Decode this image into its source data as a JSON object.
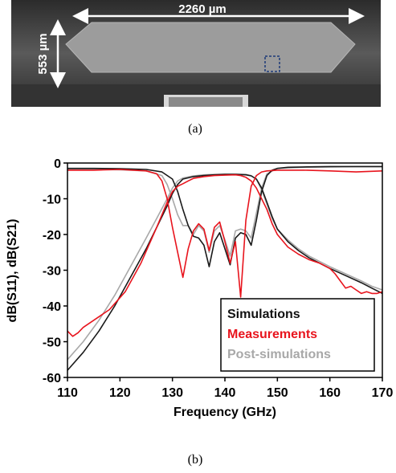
{
  "figure": {
    "caption_a": "(a)",
    "caption_b": "(b)",
    "micrograph": {
      "width_label": "2260 µm",
      "height_label": "553 µm"
    }
  },
  "chart_data": {
    "type": "line",
    "title": "",
    "xlabel": "Frequency (GHz)",
    "ylabel": "dB(S11), dB(S21)",
    "xlim": [
      110,
      170
    ],
    "ylim": [
      -60,
      0
    ],
    "xticks": [
      110,
      120,
      130,
      140,
      150,
      160,
      170
    ],
    "yticks": [
      0,
      -10,
      -20,
      -30,
      -40,
      -50,
      -60
    ],
    "xtick_labels": [
      "110",
      "120",
      "130",
      "140",
      "150",
      "160",
      "170"
    ],
    "ytick_labels": [
      "0",
      "-10",
      "-20",
      "-30",
      "-40",
      "-50",
      "-60"
    ],
    "grid": false,
    "legend_position": "bottom-right",
    "series": [
      {
        "name": "Simulations",
        "color": "#1a1a1a",
        "curves": [
          {
            "role": "S21",
            "x": [
              110,
              113,
              116,
              119,
              122,
              125,
              127,
              129,
              130,
              131,
              132,
              134,
              136,
              138,
              140,
              142,
              144,
              145,
              146,
              147,
              148,
              149,
              150,
              152,
              154,
              156,
              158,
              160,
              163,
              166,
              168,
              170
            ],
            "y": [
              -58,
              -53,
              -47,
              -40,
              -32,
              -24,
              -18,
              -12,
              -8.5,
              -6,
              -4.5,
              -3.8,
              -3.5,
              -3.3,
              -3.2,
              -3.2,
              -3.3,
              -3.6,
              -4.5,
              -7,
              -11,
              -15,
              -18.5,
              -22,
              -24.5,
              -26.5,
              -28,
              -29.5,
              -31.5,
              -33.5,
              -35,
              -36.5
            ]
          },
          {
            "role": "S11",
            "x": [
              110,
              115,
              120,
              125,
              128,
              130,
              131,
              132,
              133,
              134,
              135,
              136,
              137,
              138,
              139,
              140,
              141,
              142,
              143,
              144,
              145,
              146,
              147,
              148,
              149,
              150,
              152,
              155,
              160,
              165,
              170
            ],
            "y": [
              -1.5,
              -1.5,
              -1.6,
              -1.8,
              -2.5,
              -4.5,
              -8,
              -13,
              -17.5,
              -20.5,
              -21,
              -23,
              -29,
              -22,
              -19.5,
              -24,
              -28.5,
              -21,
              -19.5,
              -20,
              -23,
              -16,
              -8,
              -3.5,
              -2,
              -1.5,
              -1.2,
              -1.1,
              -1,
              -1,
              -1
            ]
          }
        ]
      },
      {
        "name": "Measurements",
        "color": "#e8141d",
        "curves": [
          {
            "role": "S21",
            "x": [
              110,
              111,
              112,
              113,
              115,
              118,
              121,
              124,
              127,
              129,
              130,
              131,
              132,
              133,
              134,
              136,
              138,
              140,
              142,
              143,
              144,
              145,
              146,
              147,
              148,
              149,
              150,
              152,
              154,
              156,
              158,
              160,
              161,
              162,
              163,
              164,
              165,
              166,
              167,
              168,
              169,
              170
            ],
            "y": [
              -47,
              -48.5,
              -47.5,
              -46,
              -44,
              -41,
              -36,
              -28,
              -18,
              -11,
              -8,
              -6.5,
              -5.8,
              -5,
              -4.3,
              -3.8,
              -3.5,
              -3.4,
              -3.3,
              -3.5,
              -4,
              -5,
              -7,
              -10,
              -13,
              -17,
              -20,
              -23.5,
              -25.5,
              -27,
              -28,
              -29.5,
              -31,
              -33,
              -35,
              -34.5,
              -35.5,
              -36.5,
              -36,
              -36.5,
              -36.5,
              -36
            ]
          },
          {
            "role": "S11",
            "x": [
              110,
              115,
              120,
              125,
              127,
              128,
              129,
              130,
              131,
              132,
              133,
              134,
              135,
              136,
              137,
              138,
              139,
              140,
              141,
              142,
              143,
              144,
              145,
              146,
              147,
              148,
              150,
              155,
              160,
              165,
              170
            ],
            "y": [
              -2,
              -2,
              -1.8,
              -2.2,
              -3,
              -5,
              -10,
              -18,
              -25,
              -32,
              -24,
              -19,
              -17,
              -18.5,
              -24.5,
              -18,
              -16.5,
              -22,
              -28,
              -22,
              -37.5,
              -16,
              -6.5,
              -3.5,
              -2.5,
              -2.2,
              -2,
              -2,
              -2.2,
              -2.5,
              -2.2
            ]
          }
        ]
      },
      {
        "name": "Post-simulations",
        "color": "#a8a8a8",
        "curves": [
          {
            "role": "S21",
            "x": [
              110,
              113,
              116,
              119,
              122,
              125,
              127,
              129,
              130,
              131,
              132,
              134,
              136,
              138,
              140,
              142,
              144,
              145,
              146,
              147,
              148,
              149,
              150,
              152,
              154,
              156,
              158,
              160,
              163,
              166,
              168,
              170
            ],
            "y": [
              -55,
              -50,
              -44,
              -37,
              -29,
              -21,
              -15.5,
              -10,
              -7,
              -5,
              -4.2,
              -3.6,
              -3.3,
              -3.2,
              -3.1,
              -3.1,
              -3.2,
              -3.5,
              -4.5,
              -7.5,
              -11.5,
              -15.5,
              -18.5,
              -21.5,
              -24,
              -26,
              -27.5,
              -29,
              -31,
              -33,
              -34.5,
              -35.5
            ]
          },
          {
            "role": "S11",
            "x": [
              110,
              115,
              120,
              125,
              128,
              129,
              130,
              131,
              132,
              133,
              134,
              135,
              136,
              137,
              138,
              139,
              140,
              141,
              142,
              143,
              144,
              145,
              146,
              147,
              148,
              150,
              155,
              160,
              165,
              170
            ],
            "y": [
              -1.8,
              -1.8,
              -1.9,
              -2.2,
              -3.5,
              -6,
              -10,
              -14.5,
              -17.5,
              -17.5,
              -20,
              -17.5,
              -19,
              -25,
              -19,
              -17.5,
              -21.5,
              -26,
              -19,
              -18.5,
              -19,
              -21,
              -14,
              -7,
              -3,
              -1.5,
              -1.2,
              -1.1,
              -1,
              -1
            ]
          }
        ]
      }
    ]
  }
}
